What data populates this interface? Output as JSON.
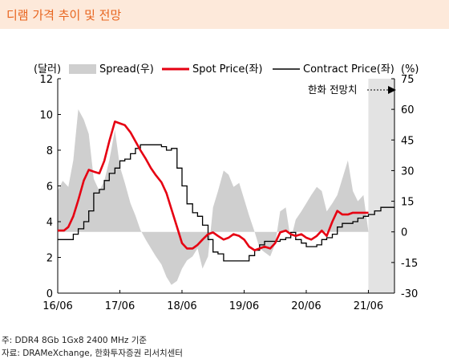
{
  "header": {
    "title": "디램 가격 추이 및 전망"
  },
  "footnotes": {
    "note": "주: DDR4 8Gb 1Gx8 2400 MHz 기준",
    "source": "자료: DRAMeXchange, 한화투자증권 리서치센터"
  },
  "colors": {
    "header_bg": "#fde9da",
    "title": "#e8651f",
    "spot": "#e60012",
    "contract": "#000000",
    "spread": "#cfcfcf"
  },
  "chart_data": {
    "type": "line",
    "left_unit": "(달러)",
    "right_unit": "(%)",
    "ylim_left": [
      0,
      12
    ],
    "ylim_right": [
      -30,
      75
    ],
    "yticks_left": [
      "0",
      "2",
      "4",
      "6",
      "8",
      "10",
      "12"
    ],
    "yticks_right": [
      "-30",
      "-15",
      "0",
      "15",
      "30",
      "45",
      "60",
      "75"
    ],
    "x_ticks": [
      "16/06",
      "17/06",
      "18/06",
      "19/06",
      "20/06",
      "21/06"
    ],
    "legend": {
      "spread": "Spread(우)",
      "spot": "Spot Price(좌)",
      "contract": "Contract Price(좌)"
    },
    "forecast_label": "한화 전망치",
    "forecast_start": 2021.5,
    "series": [
      {
        "name": "Spot Price(좌)",
        "axis": "left",
        "x": [
          2016.5,
          2016.6,
          2016.67,
          2016.75,
          2016.83,
          2016.92,
          2017.0,
          2017.08,
          2017.17,
          2017.25,
          2017.33,
          2017.42,
          2017.5,
          2017.58,
          2017.67,
          2017.75,
          2017.83,
          2017.92,
          2018.0,
          2018.08,
          2018.17,
          2018.25,
          2018.33,
          2018.42,
          2018.5,
          2018.58,
          2018.67,
          2018.75,
          2018.83,
          2018.92,
          2019.0,
          2019.08,
          2019.17,
          2019.25,
          2019.33,
          2019.42,
          2019.5,
          2019.58,
          2019.67,
          2019.75,
          2019.83,
          2019.92,
          2020.0,
          2020.08,
          2020.17,
          2020.25,
          2020.33,
          2020.42,
          2020.5,
          2020.58,
          2020.67,
          2020.75,
          2020.83,
          2020.92,
          2021.0,
          2021.08,
          2021.17,
          2021.25,
          2021.33,
          2021.42,
          2021.5
        ],
        "values": [
          3.5,
          3.5,
          3.7,
          4.3,
          5.2,
          6.3,
          6.9,
          6.8,
          6.7,
          7.4,
          8.5,
          9.6,
          9.5,
          9.4,
          9.0,
          8.5,
          8.0,
          7.5,
          7.0,
          6.6,
          6.2,
          5.6,
          4.7,
          3.7,
          2.8,
          2.5,
          2.5,
          2.7,
          3.0,
          3.3,
          3.4,
          3.2,
          3.0,
          3.1,
          3.3,
          3.2,
          3.0,
          2.6,
          2.4,
          2.5,
          2.6,
          2.5,
          2.8,
          3.4,
          3.5,
          3.3,
          3.2,
          3.3,
          3.1,
          3.0,
          3.2,
          3.5,
          3.2,
          4.0,
          4.6,
          4.4,
          4.4,
          4.5,
          4.5,
          4.5,
          4.5
        ]
      },
      {
        "name": "Contract Price(좌)",
        "axis": "left",
        "x": [
          2016.5,
          2016.58,
          2016.67,
          2016.75,
          2016.83,
          2016.92,
          2017.0,
          2017.08,
          2017.17,
          2017.25,
          2017.33,
          2017.42,
          2017.5,
          2017.58,
          2017.67,
          2017.75,
          2017.83,
          2017.92,
          2018.0,
          2018.08,
          2018.17,
          2018.25,
          2018.33,
          2018.42,
          2018.5,
          2018.58,
          2018.67,
          2018.75,
          2018.83,
          2018.92,
          2019.0,
          2019.08,
          2019.17,
          2019.25,
          2019.33,
          2019.42,
          2019.5,
          2019.58,
          2019.67,
          2019.75,
          2019.83,
          2019.92,
          2020.0,
          2020.08,
          2020.17,
          2020.25,
          2020.33,
          2020.42,
          2020.5,
          2020.58,
          2020.67,
          2020.75,
          2020.83,
          2020.92,
          2021.0,
          2021.08,
          2021.17,
          2021.25,
          2021.33,
          2021.42,
          2021.5,
          2021.6,
          2021.7,
          2021.8,
          2021.92
        ],
        "values": [
          3.0,
          3.0,
          3.0,
          3.3,
          3.6,
          4.0,
          4.6,
          5.6,
          5.8,
          6.3,
          6.7,
          7.0,
          7.4,
          7.5,
          7.8,
          8.1,
          8.3,
          8.3,
          8.3,
          8.3,
          8.2,
          8.0,
          8.1,
          7.0,
          6.0,
          5.0,
          4.5,
          4.3,
          3.8,
          3.0,
          2.3,
          2.2,
          1.8,
          1.8,
          1.8,
          1.8,
          1.8,
          2.1,
          2.4,
          2.7,
          2.9,
          2.9,
          2.9,
          3.0,
          3.1,
          3.4,
          3.0,
          2.8,
          2.6,
          2.6,
          2.7,
          3.0,
          3.1,
          3.3,
          3.7,
          3.9,
          3.9,
          4.0,
          4.2,
          4.3,
          4.4,
          4.6,
          4.8,
          4.8,
          4.8
        ]
      },
      {
        "name": "Spread(우)",
        "axis": "right",
        "x": [
          2016.5,
          2016.58,
          2016.67,
          2016.75,
          2016.83,
          2016.92,
          2017.0,
          2017.08,
          2017.17,
          2017.25,
          2017.33,
          2017.42,
          2017.5,
          2017.58,
          2017.67,
          2017.75,
          2017.83,
          2017.92,
          2018.0,
          2018.08,
          2018.17,
          2018.25,
          2018.33,
          2018.42,
          2018.5,
          2018.58,
          2018.67,
          2018.75,
          2018.83,
          2018.92,
          2019.0,
          2019.08,
          2019.17,
          2019.25,
          2019.33,
          2019.42,
          2019.5,
          2019.58,
          2019.67,
          2019.75,
          2019.83,
          2019.92,
          2020.0,
          2020.08,
          2020.17,
          2020.25,
          2020.33,
          2020.42,
          2020.5,
          2020.58,
          2020.67,
          2020.75,
          2020.83,
          2020.92,
          2021.0,
          2021.08,
          2021.17,
          2021.25,
          2021.33,
          2021.42,
          2021.5
        ],
        "values": [
          20,
          25,
          22,
          35,
          60,
          55,
          48,
          26,
          20,
          25,
          35,
          50,
          32,
          24,
          14,
          8,
          1,
          -4,
          -8,
          -12,
          -16,
          -22,
          -26,
          -24,
          -18,
          -14,
          -12,
          -8,
          -18,
          -12,
          12,
          20,
          30,
          28,
          22,
          24,
          16,
          8,
          0,
          -8,
          -10,
          -12,
          -6,
          10,
          12,
          -4,
          6,
          10,
          14,
          18,
          22,
          20,
          10,
          14,
          18,
          26,
          35,
          20,
          15,
          18,
          0
        ]
      }
    ]
  }
}
